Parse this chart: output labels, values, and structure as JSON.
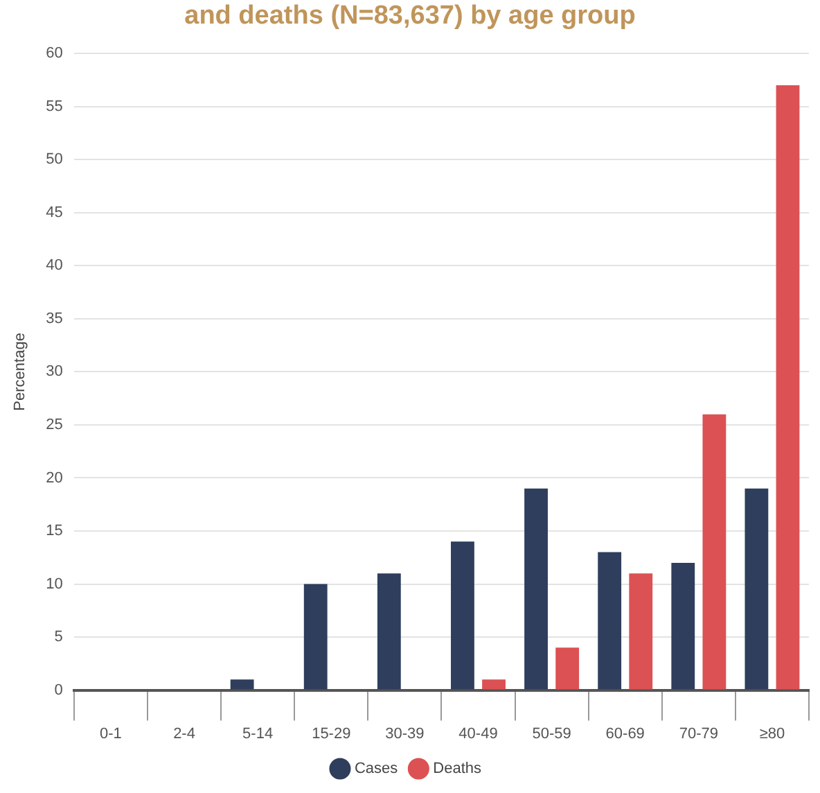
{
  "chart_data": {
    "type": "bar",
    "title": "and deaths (N=83,637) by age group",
    "ylabel": "Percentage",
    "categories": [
      "0-1",
      "2-4",
      "5-14",
      "15-29",
      "30-39",
      "40-49",
      "50-59",
      "60-69",
      "70-79",
      "≥80"
    ],
    "series": [
      {
        "name": "Cases",
        "color": "#2e3e5c",
        "values": [
          0,
          0,
          1,
          10,
          11,
          14,
          19,
          13,
          12,
          19
        ]
      },
      {
        "name": "Deaths",
        "color": "#dc5153",
        "values": [
          0,
          0,
          0,
          0,
          0,
          1,
          4,
          11,
          26,
          57
        ]
      }
    ],
    "ylim": [
      0,
      60
    ],
    "yticks": [
      0,
      5,
      10,
      15,
      20,
      25,
      30,
      35,
      40,
      45,
      50,
      55,
      60
    ],
    "grid": "y",
    "legend": "bottom"
  }
}
